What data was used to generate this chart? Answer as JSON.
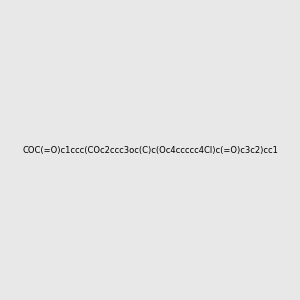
{
  "smiles": "COC(=O)c1ccc(COc2ccc3oc(C)c(Oc4ccccc4Cl)c(=O)c3c2)cc1",
  "image_size": 300,
  "background_color": "#e8e8e8",
  "bond_color": "#000000",
  "atom_colors": {
    "O": "#ff0000",
    "Cl": "#00cc00",
    "C": "#000000"
  }
}
